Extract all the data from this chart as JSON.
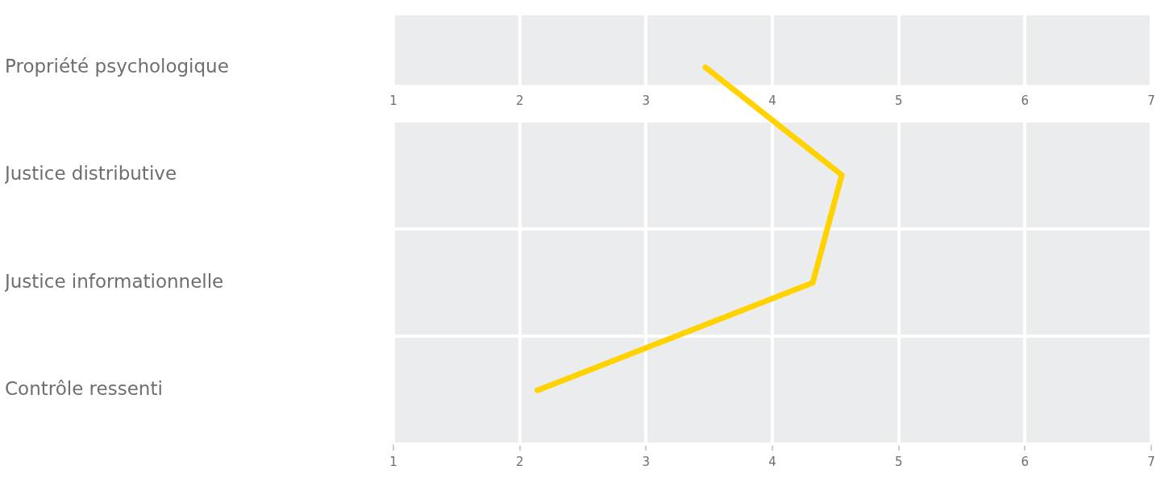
{
  "chart_data": {
    "type": "line",
    "orientation": "horizontal",
    "categories": [
      "Propriété psychologique",
      "Justice distributive",
      "Justice informationnelle",
      "Contrôle ressenti"
    ],
    "series": [
      {
        "color": "#ffd200",
        "values": [
          3.47,
          4.55,
          4.32,
          2.14
        ]
      }
    ],
    "xlim": [
      1,
      7
    ],
    "xticks": [
      1,
      2,
      3,
      4,
      5,
      6,
      7
    ],
    "x2lim": [
      1,
      7
    ],
    "x2ticks": [
      1,
      2,
      3,
      4,
      5,
      6,
      7
    ],
    "grid": true,
    "legend": false,
    "marker": "none",
    "line_style": "solid"
  }
}
